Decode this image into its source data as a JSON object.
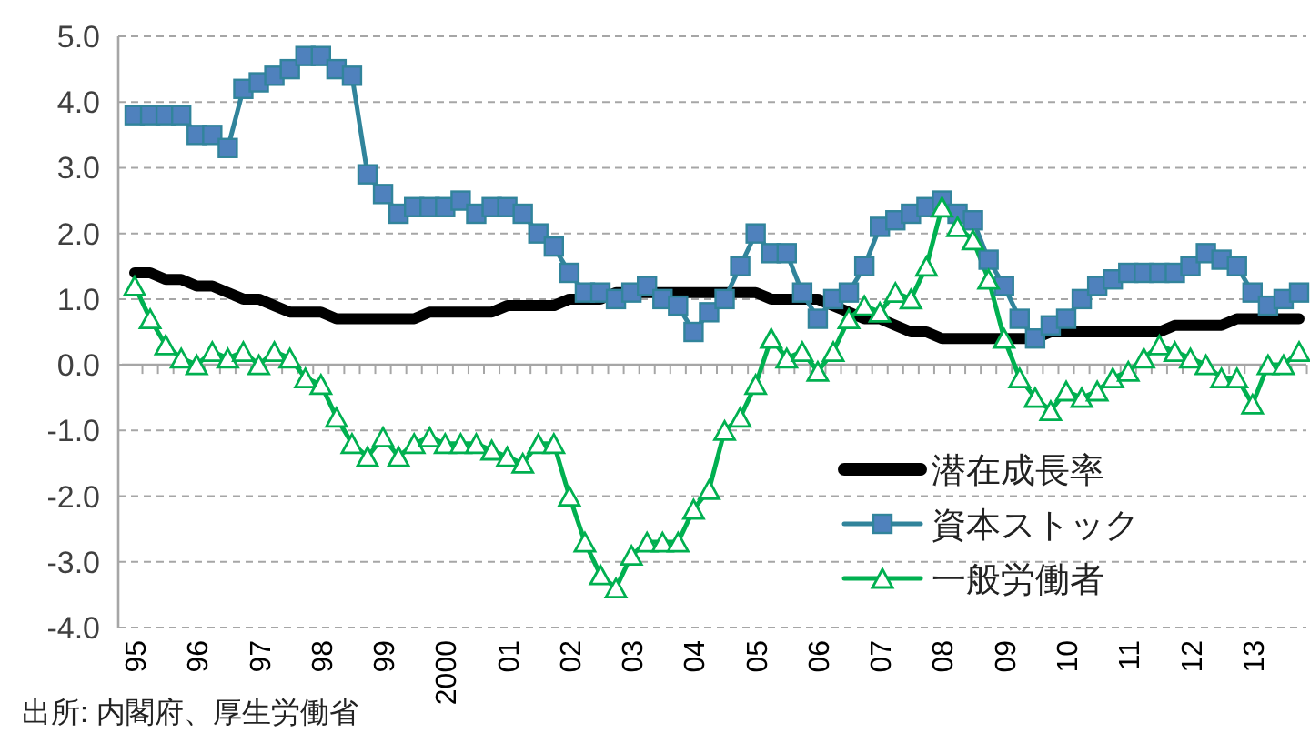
{
  "chart_data": {
    "type": "line",
    "categories": [
      "95",
      null,
      null,
      null,
      "96",
      null,
      null,
      null,
      "97",
      null,
      null,
      null,
      "98",
      null,
      null,
      null,
      "99",
      null,
      null,
      null,
      "2000",
      null,
      null,
      null,
      "01",
      null,
      null,
      null,
      "02",
      null,
      null,
      null,
      "03",
      null,
      null,
      null,
      "04",
      null,
      null,
      null,
      "05",
      null,
      null,
      null,
      "06",
      null,
      null,
      null,
      "07",
      null,
      null,
      null,
      "08",
      null,
      null,
      null,
      "09",
      null,
      null,
      null,
      "10",
      null,
      null,
      null,
      "11",
      null,
      null,
      null,
      "12",
      null,
      null,
      null,
      "13",
      null,
      null,
      null
    ],
    "series": [
      {
        "name": "潜在成長率",
        "color": "#000000",
        "marker": "none",
        "values": [
          1.4,
          1.4,
          1.3,
          1.3,
          1.2,
          1.2,
          1.1,
          1.0,
          1.0,
          0.9,
          0.8,
          0.8,
          0.8,
          0.7,
          0.7,
          0.7,
          0.7,
          0.7,
          0.7,
          0.8,
          0.8,
          0.8,
          0.8,
          0.8,
          0.9,
          0.9,
          0.9,
          0.9,
          1.0,
          1.0,
          1.0,
          1.1,
          1.1,
          1.1,
          1.1,
          1.1,
          1.1,
          1.1,
          1.1,
          1.1,
          1.1,
          1.0,
          1.0,
          1.0,
          1.0,
          0.9,
          0.8,
          0.7,
          0.7,
          0.6,
          0.5,
          0.5,
          0.4,
          0.4,
          0.4,
          0.4,
          0.4,
          0.4,
          0.4,
          0.5,
          0.5,
          0.5,
          0.5,
          0.5,
          0.5,
          0.5,
          0.5,
          0.6,
          0.6,
          0.6,
          0.6,
          0.7,
          0.7,
          0.7,
          0.7,
          0.7
        ]
      },
      {
        "name": "資本ストック",
        "color": "#31849b",
        "marker": "square",
        "values": [
          3.8,
          3.8,
          3.8,
          3.8,
          3.5,
          3.5,
          3.3,
          4.2,
          4.3,
          4.4,
          4.5,
          4.7,
          4.7,
          4.5,
          4.4,
          2.9,
          2.6,
          2.3,
          2.4,
          2.4,
          2.4,
          2.5,
          2.3,
          2.4,
          2.4,
          2.3,
          2.0,
          1.8,
          1.4,
          1.1,
          1.1,
          1.0,
          1.1,
          1.2,
          1.0,
          0.9,
          0.5,
          0.8,
          1.0,
          1.5,
          2.0,
          1.7,
          1.7,
          1.1,
          0.7,
          1.0,
          1.1,
          1.5,
          2.1,
          2.2,
          2.3,
          2.4,
          2.5,
          2.3,
          2.2,
          1.6,
          1.2,
          0.7,
          0.4,
          0.6,
          0.7,
          1.0,
          1.2,
          1.3,
          1.4,
          1.4,
          1.4,
          1.4,
          1.5,
          1.7,
          1.6,
          1.5,
          1.1,
          0.9,
          1.0,
          1.1
        ]
      },
      {
        "name": "一般労働者",
        "color": "#00b050",
        "marker": "triangle",
        "values": [
          1.2,
          0.7,
          0.3,
          0.1,
          0.0,
          0.2,
          0.1,
          0.2,
          0.0,
          0.2,
          0.1,
          -0.2,
          -0.3,
          -0.8,
          -1.2,
          -1.4,
          -1.1,
          -1.4,
          -1.2,
          -1.1,
          -1.2,
          -1.2,
          -1.2,
          -1.3,
          -1.4,
          -1.5,
          -1.2,
          -1.2,
          -2.0,
          -2.7,
          -3.2,
          -3.4,
          -2.9,
          -2.7,
          -2.7,
          -2.7,
          -2.2,
          -1.9,
          -1.0,
          -0.8,
          -0.3,
          0.4,
          0.1,
          0.2,
          -0.1,
          0.2,
          0.7,
          0.9,
          0.8,
          1.1,
          1.0,
          1.5,
          2.4,
          2.1,
          1.9,
          1.3,
          0.4,
          -0.2,
          -0.5,
          -0.7,
          -0.4,
          -0.5,
          -0.4,
          -0.2,
          -0.1,
          0.1,
          0.3,
          0.2,
          0.1,
          0.0,
          -0.2,
          -0.2,
          -0.6,
          0.0,
          0.0,
          0.2
        ]
      }
    ],
    "ylim": [
      -4,
      5
    ],
    "yticks": [
      {
        "value": -4,
        "label": "-4.0"
      },
      {
        "value": -3,
        "label": "-3.0"
      },
      {
        "value": -2,
        "label": "-2.0"
      },
      {
        "value": -1,
        "label": "-1.0"
      },
      {
        "value": 0,
        "label": "0.0"
      },
      {
        "value": 1,
        "label": "1.0"
      },
      {
        "value": 2,
        "label": "2.0"
      },
      {
        "value": 3,
        "label": "3.0"
      },
      {
        "value": 4,
        "label": "4.0"
      },
      {
        "value": 5,
        "label": "5.0"
      }
    ],
    "grid": "y",
    "legend": "bottom right",
    "annotations": [
      "出所: 内閣府、厚生労働省"
    ]
  }
}
